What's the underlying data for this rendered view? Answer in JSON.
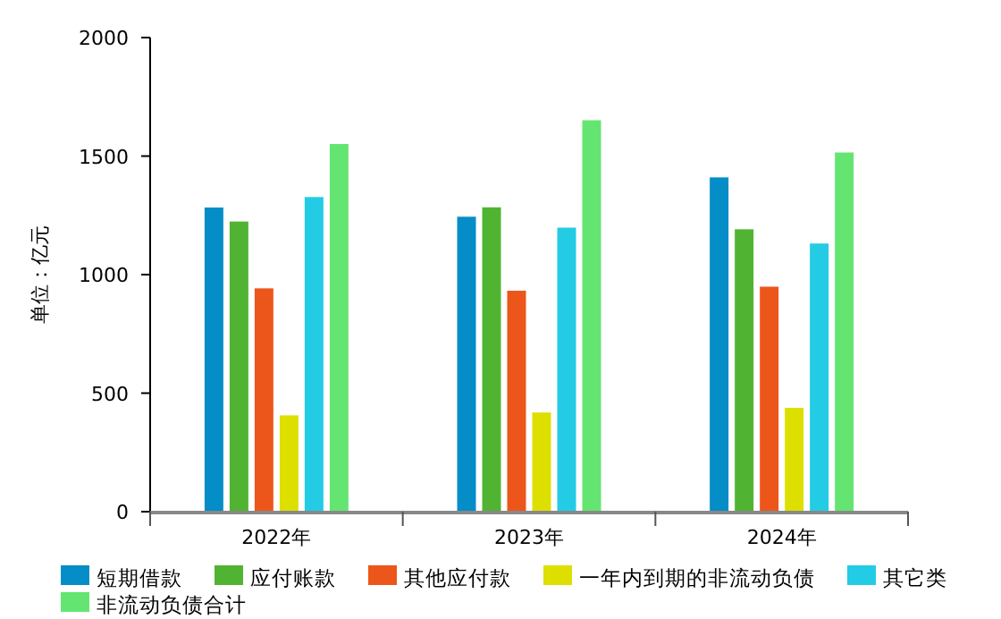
{
  "chart_data": {
    "type": "bar",
    "ylabel": "单位：亿元",
    "categories": [
      "2022年",
      "2023年",
      "2024年"
    ],
    "series": [
      {
        "name": "短期借款",
        "color": "#058dc7",
        "values": [
          1285,
          1246,
          1412
        ]
      },
      {
        "name": "应付账款",
        "color": "#50b432",
        "values": [
          1226,
          1286,
          1193
        ]
      },
      {
        "name": "其他应付款",
        "color": "#ed561b",
        "values": [
          944,
          934,
          951
        ]
      },
      {
        "name": "一年内到期的非流动负债",
        "color": "#dddf00",
        "values": [
          408,
          420,
          440
        ]
      },
      {
        "name": "其它类",
        "color": "#24cbe5",
        "values": [
          1329,
          1200,
          1133
        ]
      },
      {
        "name": "非流动负债合计",
        "color": "#64e572",
        "values": [
          1553,
          1653,
          1517
        ]
      }
    ],
    "ylim": [
      0,
      2000
    ],
    "yticks": [
      0,
      500,
      1000,
      1500,
      2000
    ],
    "legend": "bottom"
  }
}
